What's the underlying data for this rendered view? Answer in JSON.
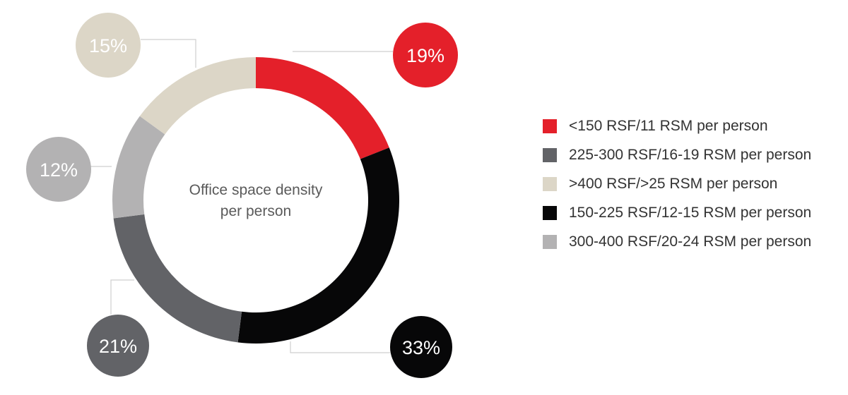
{
  "chart_data": {
    "type": "pie",
    "donut": true,
    "center_label": [
      "Office space density",
      "per person"
    ],
    "slices": [
      {
        "label": "<150 RSF/11 RSM per person",
        "value": 19,
        "display": "19%",
        "color": "#e4202a"
      },
      {
        "label": "150-225 RSF/12-15 RSM per person",
        "value": 33,
        "display": "33%",
        "color": "#070708"
      },
      {
        "label": "225-300 RSF/16-19 RSM per person",
        "value": 21,
        "display": "21%",
        "color": "#626367"
      },
      {
        "label": "300-400 RSF/20-24 RSM per person",
        "value": 12,
        "display": "12%",
        "color": "#b3b2b3"
      },
      {
        "label": ">400 RSF/>25 RSM per person",
        "value": 15,
        "display": "15%",
        "color": "#dcd6c7"
      }
    ],
    "legend_order": [
      0,
      2,
      4,
      1,
      3
    ],
    "legend_position": "right"
  }
}
